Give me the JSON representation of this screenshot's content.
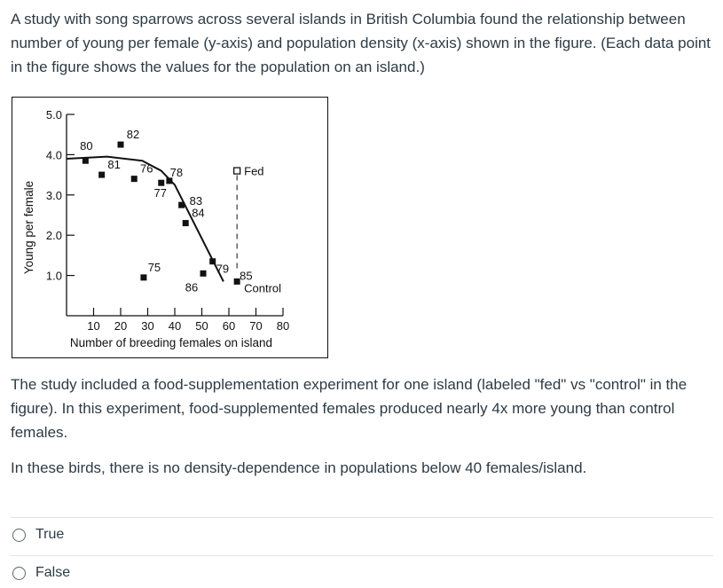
{
  "question": {
    "intro": "A study with song sparrows across several islands in British Columbia found the relationship between number of young per female (y-axis) and population density (x-axis) shown in the figure. (Each data point in the figure shows the values for the population on an island.)",
    "study": "The study included a food-supplementation experiment for one island (labeled \"fed\" vs \"control\" in the figure). In this experiment, food-supplemented females produced nearly 4x more young than control females.",
    "statement": "In these birds, there is no density-dependence in populations below 40 females/island."
  },
  "options": [
    {
      "label": "True"
    },
    {
      "label": "False"
    }
  ],
  "chart_data": {
    "type": "scatter",
    "title": "",
    "xlabel": "Number of breeding females on island",
    "ylabel": "Young per female",
    "xlim": [
      0,
      80
    ],
    "ylim": [
      0,
      5
    ],
    "x_ticks": [
      10,
      20,
      30,
      40,
      50,
      60,
      70,
      80
    ],
    "y_ticks": [
      1,
      2,
      3,
      4,
      5
    ],
    "y_tick_labels": [
      "1.0",
      "2.0",
      "3.0",
      "4.0",
      "5.0"
    ],
    "grid": false,
    "points": [
      {
        "label": "80",
        "x": 7,
        "y": 3.85
      },
      {
        "label": "81",
        "x": 13,
        "y": 3.5
      },
      {
        "label": "82",
        "x": 20,
        "y": 4.25
      },
      {
        "label": "76",
        "x": 25,
        "y": 3.4
      },
      {
        "label": "75",
        "x": 28.5,
        "y": 0.95
      },
      {
        "label": "77",
        "x": 35,
        "y": 3.3
      },
      {
        "label": "78",
        "x": 38,
        "y": 3.35
      },
      {
        "label": "83",
        "x": 42.5,
        "y": 2.75
      },
      {
        "label": "84",
        "x": 44,
        "y": 2.3
      },
      {
        "label": "86",
        "x": 50.5,
        "y": 1.05
      },
      {
        "label": "79",
        "x": 54,
        "y": 1.35
      },
      {
        "label": "85",
        "x": 63,
        "y": 0.85
      }
    ],
    "fed": {
      "label": "Fed",
      "x": 63,
      "y": 3.6
    },
    "control": {
      "label": "Control",
      "x": 63,
      "y": 0.85
    },
    "trend_line": [
      [
        0,
        3.9
      ],
      [
        15,
        3.95
      ],
      [
        28,
        3.85
      ],
      [
        35,
        3.6
      ],
      [
        40,
        3.25
      ],
      [
        58,
        0.85
      ]
    ]
  }
}
